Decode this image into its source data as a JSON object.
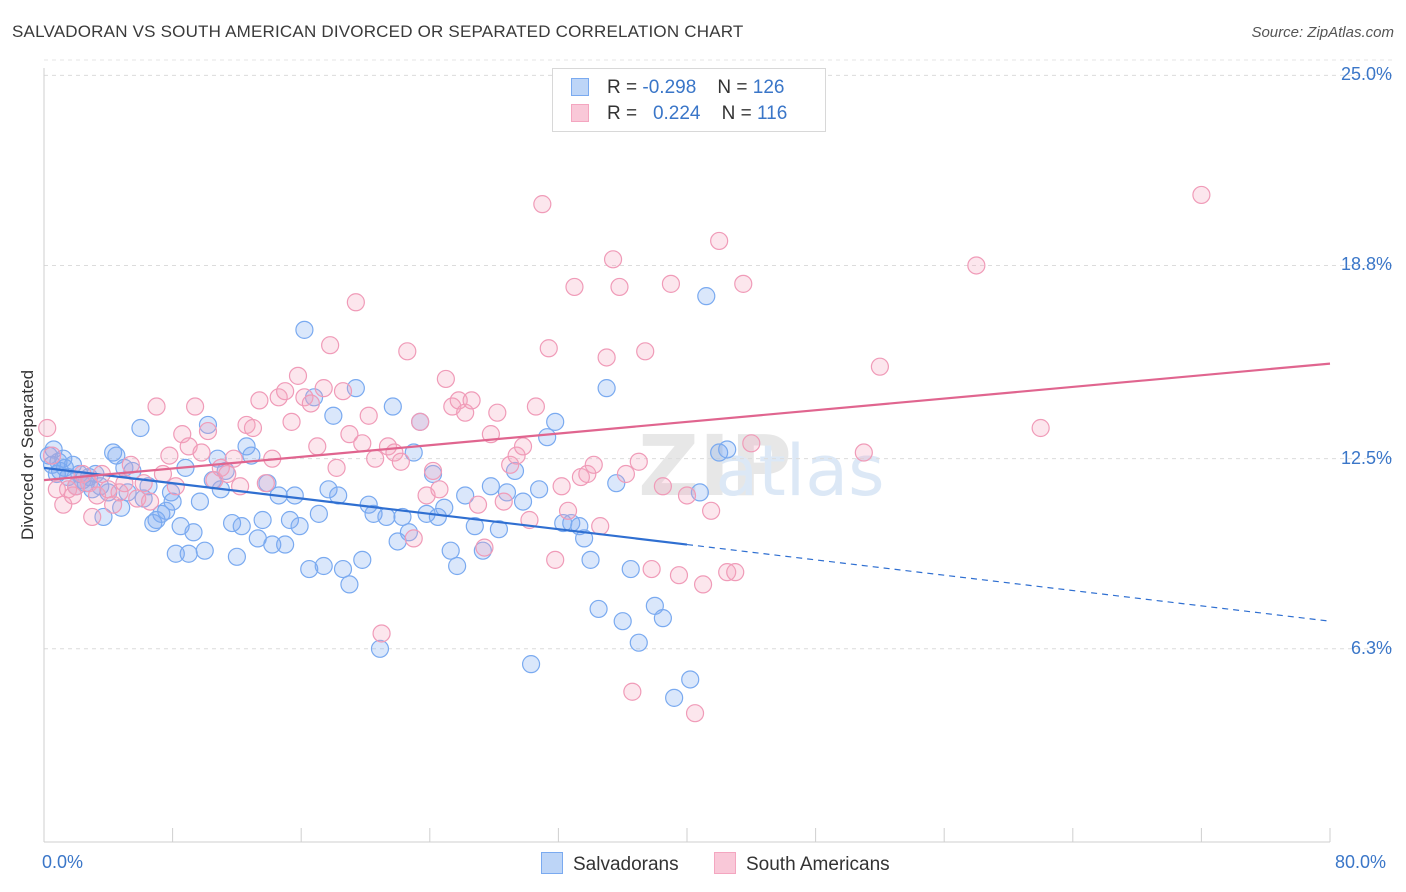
{
  "chart_data": {
    "type": "scatter",
    "title": "SALVADORAN VS SOUTH AMERICAN DIVORCED OR SEPARATED CORRELATION CHART",
    "source": "Source: ZipAtlas.com",
    "xlabel": "",
    "ylabel": "Divorced or Separated",
    "xlim": [
      0,
      80
    ],
    "ylim": [
      0,
      25.5
    ],
    "x_tick_labels": [
      "0.0%",
      "80.0%"
    ],
    "y_ticks": [
      6.3,
      12.5,
      18.8,
      25.0
    ],
    "y_tick_labels": [
      "6.3%",
      "12.5%",
      "18.8%",
      "25.0%"
    ],
    "grid": "horizontal dashed",
    "legend_position": "top-center",
    "watermark": "ZIPatlas",
    "legend": [
      {
        "label_r": "R =",
        "r_value": "-0.298",
        "label_n": "N =",
        "n_value": "126"
      },
      {
        "label_r": "R =",
        "r_value": "0.224",
        "label_n": "N =",
        "n_value": "116"
      }
    ],
    "series": [
      {
        "name": "Salvadorans",
        "color": "#7aaaf0",
        "line_color": "#2f6fd1",
        "trend": {
          "x0": 0,
          "y0": 12.2,
          "x1": 40,
          "y1": 9.7,
          "dash_to_x": 80,
          "dash_to_y": 7.2
        },
        "points": [
          [
            0.3,
            12.6
          ],
          [
            0.5,
            12.3
          ],
          [
            0.6,
            12.8
          ],
          [
            0.8,
            12.0
          ],
          [
            0.9,
            12.4
          ],
          [
            1.0,
            12.1
          ],
          [
            1.2,
            12.5
          ],
          [
            1.3,
            12.2
          ],
          [
            1.5,
            11.9
          ],
          [
            1.8,
            12.3
          ],
          [
            2.0,
            11.6
          ],
          [
            2.2,
            12.0
          ],
          [
            2.4,
            11.8
          ],
          [
            2.6,
            11.7
          ],
          [
            2.8,
            11.9
          ],
          [
            3.0,
            11.5
          ],
          [
            3.2,
            12.0
          ],
          [
            3.5,
            11.6
          ],
          [
            3.7,
            10.6
          ],
          [
            4.0,
            11.4
          ],
          [
            4.3,
            12.7
          ],
          [
            4.5,
            12.6
          ],
          [
            4.8,
            10.9
          ],
          [
            5.0,
            12.2
          ],
          [
            5.2,
            11.4
          ],
          [
            5.5,
            12.1
          ],
          [
            6.0,
            13.5
          ],
          [
            6.2,
            11.2
          ],
          [
            6.5,
            11.6
          ],
          [
            6.8,
            10.4
          ],
          [
            7.0,
            10.5
          ],
          [
            7.3,
            10.7
          ],
          [
            7.6,
            10.8
          ],
          [
            7.9,
            11.4
          ],
          [
            8.0,
            11.1
          ],
          [
            8.2,
            9.4
          ],
          [
            8.5,
            10.3
          ],
          [
            8.8,
            12.2
          ],
          [
            9.0,
            9.4
          ],
          [
            9.3,
            10.1
          ],
          [
            9.7,
            11.1
          ],
          [
            10.0,
            9.5
          ],
          [
            10.2,
            13.6
          ],
          [
            10.5,
            11.8
          ],
          [
            10.8,
            12.5
          ],
          [
            11.0,
            11.5
          ],
          [
            11.3,
            12.1
          ],
          [
            11.7,
            10.4
          ],
          [
            12.0,
            9.3
          ],
          [
            12.3,
            10.3
          ],
          [
            12.6,
            12.9
          ],
          [
            12.9,
            12.6
          ],
          [
            13.3,
            9.9
          ],
          [
            13.6,
            10.5
          ],
          [
            13.9,
            11.7
          ],
          [
            14.2,
            9.7
          ],
          [
            14.6,
            11.3
          ],
          [
            15.0,
            9.7
          ],
          [
            15.3,
            10.5
          ],
          [
            15.6,
            11.3
          ],
          [
            15.9,
            10.3
          ],
          [
            16.2,
            16.7
          ],
          [
            16.5,
            8.9
          ],
          [
            16.8,
            14.5
          ],
          [
            17.1,
            10.7
          ],
          [
            17.4,
            9.0
          ],
          [
            17.7,
            11.5
          ],
          [
            18.0,
            13.9
          ],
          [
            18.3,
            11.3
          ],
          [
            18.6,
            8.9
          ],
          [
            19.0,
            8.4
          ],
          [
            19.4,
            14.8
          ],
          [
            19.8,
            9.2
          ],
          [
            20.2,
            11.0
          ],
          [
            20.5,
            10.7
          ],
          [
            20.9,
            6.3
          ],
          [
            21.3,
            10.6
          ],
          [
            21.7,
            14.2
          ],
          [
            22.0,
            9.8
          ],
          [
            22.3,
            10.6
          ],
          [
            22.7,
            10.1
          ],
          [
            23.0,
            12.7
          ],
          [
            23.4,
            13.7
          ],
          [
            23.8,
            10.7
          ],
          [
            24.2,
            12.0
          ],
          [
            24.5,
            10.6
          ],
          [
            24.9,
            10.9
          ],
          [
            25.3,
            9.5
          ],
          [
            25.7,
            9.0
          ],
          [
            26.2,
            11.3
          ],
          [
            26.8,
            10.3
          ],
          [
            27.3,
            9.5
          ],
          [
            27.8,
            11.6
          ],
          [
            28.3,
            10.2
          ],
          [
            28.8,
            11.4
          ],
          [
            29.3,
            12.1
          ],
          [
            29.8,
            11.1
          ],
          [
            30.3,
            5.8
          ],
          [
            30.8,
            11.5
          ],
          [
            31.3,
            13.2
          ],
          [
            31.8,
            13.7
          ],
          [
            32.3,
            10.4
          ],
          [
            32.8,
            10.4
          ],
          [
            33.3,
            10.3
          ],
          [
            33.6,
            9.9
          ],
          [
            34.0,
            9.2
          ],
          [
            34.5,
            7.6
          ],
          [
            35.0,
            14.8
          ],
          [
            35.6,
            11.7
          ],
          [
            36.0,
            7.2
          ],
          [
            36.5,
            8.9
          ],
          [
            37.0,
            6.5
          ],
          [
            38.0,
            7.7
          ],
          [
            38.5,
            7.3
          ],
          [
            39.2,
            4.7
          ],
          [
            40.2,
            5.3
          ],
          [
            40.8,
            11.4
          ],
          [
            41.2,
            17.8
          ],
          [
            42.0,
            12.7
          ],
          [
            42.5,
            12.8
          ]
        ]
      },
      {
        "name": "South Americans",
        "color": "#f4a6c0",
        "line_color": "#e0658f",
        "trend": {
          "x0": 0,
          "y0": 11.8,
          "x1": 80,
          "y1": 15.6
        },
        "points": [
          [
            0.2,
            13.5
          ],
          [
            0.5,
            12.6
          ],
          [
            0.8,
            11.5
          ],
          [
            1.2,
            11.0
          ],
          [
            1.5,
            11.5
          ],
          [
            1.8,
            11.3
          ],
          [
            2.0,
            11.6
          ],
          [
            2.4,
            12.0
          ],
          [
            2.8,
            11.7
          ],
          [
            3.0,
            10.6
          ],
          [
            3.3,
            11.3
          ],
          [
            3.6,
            12.0
          ],
          [
            4.0,
            11.5
          ],
          [
            4.3,
            11.0
          ],
          [
            4.7,
            11.4
          ],
          [
            5.0,
            11.7
          ],
          [
            5.4,
            12.3
          ],
          [
            5.8,
            11.2
          ],
          [
            6.2,
            11.7
          ],
          [
            6.6,
            11.1
          ],
          [
            7.0,
            14.2
          ],
          [
            7.4,
            12.0
          ],
          [
            7.8,
            12.6
          ],
          [
            8.2,
            11.6
          ],
          [
            8.6,
            13.3
          ],
          [
            9.0,
            12.9
          ],
          [
            9.4,
            14.2
          ],
          [
            9.8,
            12.7
          ],
          [
            10.2,
            13.4
          ],
          [
            10.6,
            11.8
          ],
          [
            11.0,
            12.2
          ],
          [
            11.4,
            12.0
          ],
          [
            11.8,
            12.5
          ],
          [
            12.2,
            11.6
          ],
          [
            12.6,
            13.6
          ],
          [
            13.0,
            13.5
          ],
          [
            13.4,
            14.4
          ],
          [
            13.8,
            11.7
          ],
          [
            14.2,
            12.5
          ],
          [
            14.6,
            14.5
          ],
          [
            15.0,
            14.7
          ],
          [
            15.4,
            13.7
          ],
          [
            15.8,
            15.2
          ],
          [
            16.2,
            14.5
          ],
          [
            16.6,
            14.3
          ],
          [
            17.0,
            12.9
          ],
          [
            17.4,
            14.8
          ],
          [
            17.8,
            16.2
          ],
          [
            18.2,
            12.2
          ],
          [
            18.6,
            14.7
          ],
          [
            19.0,
            13.3
          ],
          [
            19.4,
            17.6
          ],
          [
            19.8,
            13.0
          ],
          [
            20.2,
            13.9
          ],
          [
            20.6,
            12.5
          ],
          [
            21.0,
            6.8
          ],
          [
            21.4,
            12.9
          ],
          [
            21.8,
            12.7
          ],
          [
            22.2,
            12.4
          ],
          [
            22.6,
            16.0
          ],
          [
            23.0,
            9.9
          ],
          [
            23.4,
            13.7
          ],
          [
            23.8,
            11.3
          ],
          [
            24.2,
            12.1
          ],
          [
            24.6,
            11.5
          ],
          [
            25.0,
            15.1
          ],
          [
            25.4,
            14.2
          ],
          [
            25.8,
            14.4
          ],
          [
            26.2,
            14.0
          ],
          [
            26.6,
            14.4
          ],
          [
            27.0,
            11.0
          ],
          [
            27.4,
            9.6
          ],
          [
            27.8,
            13.3
          ],
          [
            28.2,
            14.0
          ],
          [
            28.6,
            11.1
          ],
          [
            29.0,
            12.3
          ],
          [
            29.4,
            12.6
          ],
          [
            29.8,
            12.9
          ],
          [
            30.2,
            10.5
          ],
          [
            30.6,
            14.2
          ],
          [
            31.0,
            20.8
          ],
          [
            31.4,
            16.1
          ],
          [
            31.8,
            9.2
          ],
          [
            32.2,
            11.6
          ],
          [
            32.6,
            10.8
          ],
          [
            33.0,
            18.1
          ],
          [
            33.4,
            11.9
          ],
          [
            33.8,
            12.0
          ],
          [
            34.2,
            12.3
          ],
          [
            34.6,
            10.3
          ],
          [
            35.0,
            15.8
          ],
          [
            35.4,
            19.0
          ],
          [
            35.8,
            18.1
          ],
          [
            36.2,
            12.0
          ],
          [
            36.6,
            4.9
          ],
          [
            37.0,
            12.4
          ],
          [
            37.4,
            16.0
          ],
          [
            37.8,
            8.9
          ],
          [
            38.5,
            11.6
          ],
          [
            39.0,
            18.2
          ],
          [
            39.5,
            8.7
          ],
          [
            40.0,
            11.3
          ],
          [
            40.5,
            4.2
          ],
          [
            41.0,
            8.4
          ],
          [
            41.5,
            10.8
          ],
          [
            42.0,
            19.6
          ],
          [
            42.5,
            8.8
          ],
          [
            43.0,
            8.8
          ],
          [
            43.5,
            18.2
          ],
          [
            44.0,
            13.0
          ],
          [
            51.0,
            12.7
          ],
          [
            52.0,
            15.5
          ],
          [
            58.0,
            18.8
          ],
          [
            62.0,
            13.5
          ],
          [
            72.0,
            21.1
          ]
        ]
      }
    ]
  },
  "bottom_legend": {
    "series1": "Salvadorans",
    "series2": "South Americans"
  }
}
